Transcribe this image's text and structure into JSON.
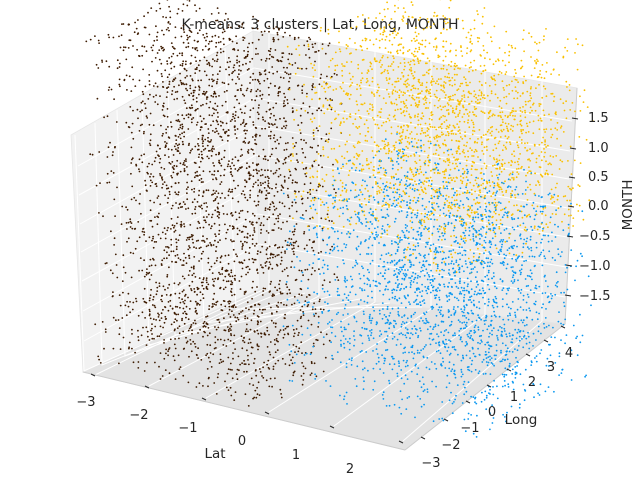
{
  "chart_data": {
    "type": "scatter",
    "title": "K-means: 3 clusters | Lat, Long, MONTH",
    "projection": "3d",
    "xlabel": "Lat",
    "ylabel": "Long",
    "zlabel": "MONTH",
    "xlim": [
      -3.2,
      2.6
    ],
    "ylim": [
      -3.6,
      4.6
    ],
    "zlim": [
      -2.0,
      1.8
    ],
    "x_ticks": [
      "−3",
      "−2",
      "−1",
      "0",
      "1",
      "2"
    ],
    "y_ticks": [
      "−3",
      "−2",
      "−1",
      "0",
      "1",
      "2",
      "3",
      "4"
    ],
    "z_ticks": [
      "1.5",
      "1.0",
      "0.5",
      "0.0",
      "−0.5",
      "−1.0",
      "−1.5"
    ],
    "grid": true,
    "legend": "none",
    "colors": {
      "cluster_dark": "#3d1b00",
      "cluster_yellow": "#f9c000",
      "cluster_blue": "#0b98f0"
    },
    "series": [
      {
        "color": "#3d1b00",
        "approx_lat_range": [
          -3.0,
          -0.3
        ],
        "approx_long_range": [
          -3.0,
          0.5
        ],
        "approx_month_range": [
          -1.8,
          1.7
        ]
      },
      {
        "color": "#f9c000",
        "approx_lat_range": [
          -0.8,
          2.3
        ],
        "approx_long_range": [
          -1.0,
          4.0
        ],
        "approx_month_range": [
          -0.2,
          1.7
        ]
      },
      {
        "color": "#0b98f0",
        "approx_lat_range": [
          -0.8,
          2.3
        ],
        "approx_long_range": [
          -1.0,
          4.0
        ],
        "approx_month_range": [
          -1.8,
          0.2
        ]
      }
    ]
  }
}
